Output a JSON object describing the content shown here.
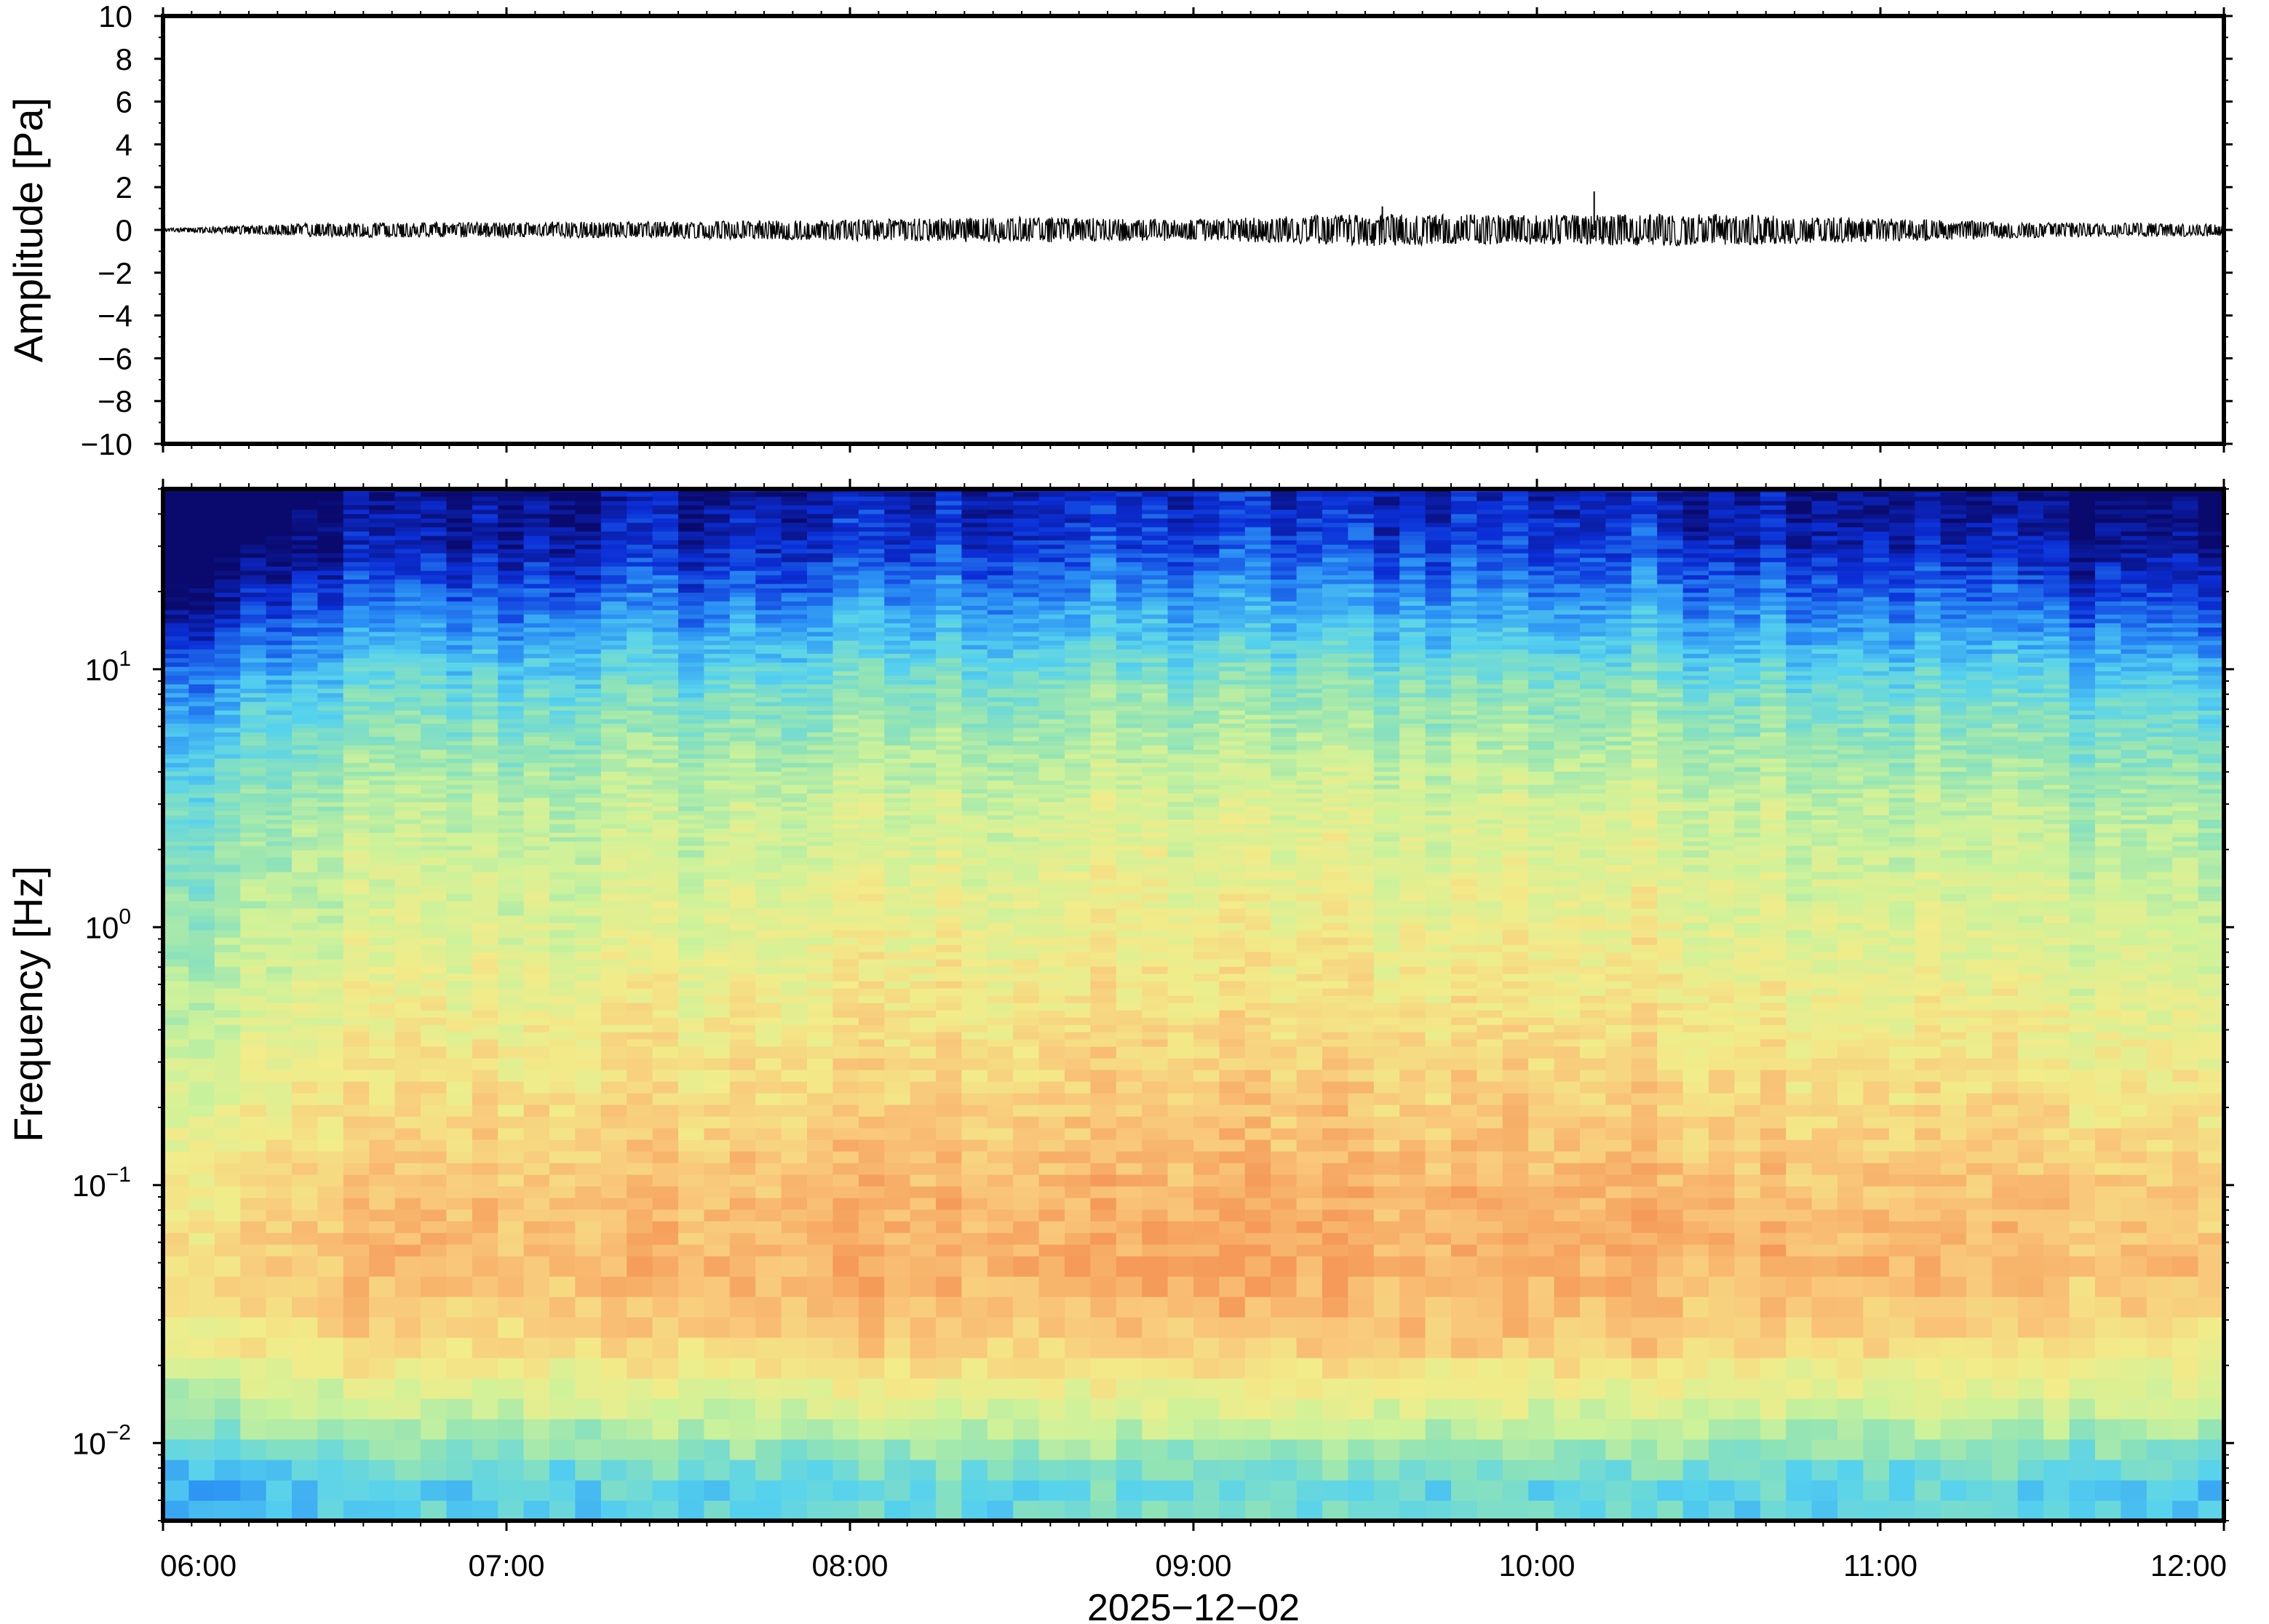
{
  "chart_data": [
    {
      "type": "line",
      "panel": "waveform",
      "ylabel": "Amplitude [Pa]",
      "ylim": [
        -10,
        10
      ],
      "yticks": [
        10,
        8,
        6,
        4,
        2,
        0,
        -2,
        -4,
        -6,
        -8,
        -10
      ],
      "ytick_labels": [
        "10",
        "8",
        "6",
        "4",
        "2",
        "0",
        "−2",
        "−4",
        "−6",
        "−8",
        "−10"
      ],
      "xlim": [
        "2025-12-02 06:00",
        "2025-12-02 12:00"
      ],
      "grid": false,
      "series": [
        {
          "x": [
            "06:00",
            "06:30",
            "07:00",
            "07:30",
            "08:00",
            "08:30",
            "09:00",
            "09:30",
            "10:00",
            "10:30",
            "11:00",
            "11:30",
            "12:00"
          ],
          "envelope": [
            0.08,
            0.35,
            0.35,
            0.4,
            0.5,
            0.6,
            0.5,
            0.75,
            0.7,
            0.75,
            0.55,
            0.35,
            0.3
          ],
          "peaks": [
            {
              "x": "10:10",
              "y": 1.8
            },
            {
              "x": "09:33",
              "y": 1.1
            }
          ],
          "color": "#000000"
        }
      ]
    },
    {
      "type": "heatmap",
      "panel": "spectrogram",
      "ylabel": "Frequency [Hz]",
      "yscale": "log",
      "ylim": [
        0.005,
        50
      ],
      "yticks": [
        0.01,
        0.1,
        1,
        10
      ],
      "ytick_labels": [
        {
          "base": "10",
          "exp": "−2"
        },
        {
          "base": "10",
          "exp": "−1"
        },
        {
          "base": "10",
          "exp": "0"
        },
        {
          "base": "10",
          "exp": "1"
        }
      ],
      "xlim": [
        "2025-12-02 06:00",
        "2025-12-02 12:00"
      ],
      "xtick_labels": [
        "06:00",
        "07:00",
        "08:00",
        "09:00",
        "10:00",
        "11:00",
        "12:00"
      ],
      "xlabel": "2025−12−02",
      "colormap": "jet",
      "colors": [
        "#0a0a6e",
        "#0b2fd8",
        "#2a8ff5",
        "#56d2ee",
        "#8fe3b7",
        "#cdf29a",
        "#f2ec8a",
        "#f9c77a",
        "#f59a58"
      ],
      "intensity_profile": [
        {
          "freq": 0.007,
          "level": 0.38
        },
        {
          "freq": 0.012,
          "level": 0.58
        },
        {
          "freq": 0.025,
          "level": 0.82
        },
        {
          "freq": 0.05,
          "level": 0.9
        },
        {
          "freq": 0.1,
          "level": 0.86
        },
        {
          "freq": 0.3,
          "level": 0.76
        },
        {
          "freq": 1,
          "level": 0.66
        },
        {
          "freq": 3,
          "level": 0.58
        },
        {
          "freq": 8,
          "level": 0.42
        },
        {
          "freq": 15,
          "level": 0.24
        },
        {
          "freq": 30,
          "level": 0.06
        },
        {
          "freq": 50,
          "level": 0.0
        }
      ],
      "time_profile": [
        {
          "time": "06:00",
          "level": -0.2
        },
        {
          "time": "06:20",
          "level": -0.1
        },
        {
          "time": "06:30",
          "level": 0.0
        },
        {
          "time": "07:30",
          "level": 0.03
        },
        {
          "time": "08:15",
          "level": 0.08
        },
        {
          "time": "09:30",
          "level": 0.1
        },
        {
          "time": "10:30",
          "level": 0.08
        },
        {
          "time": "11:30",
          "level": 0.0
        },
        {
          "time": "12:00",
          "level": -0.03
        }
      ]
    }
  ]
}
